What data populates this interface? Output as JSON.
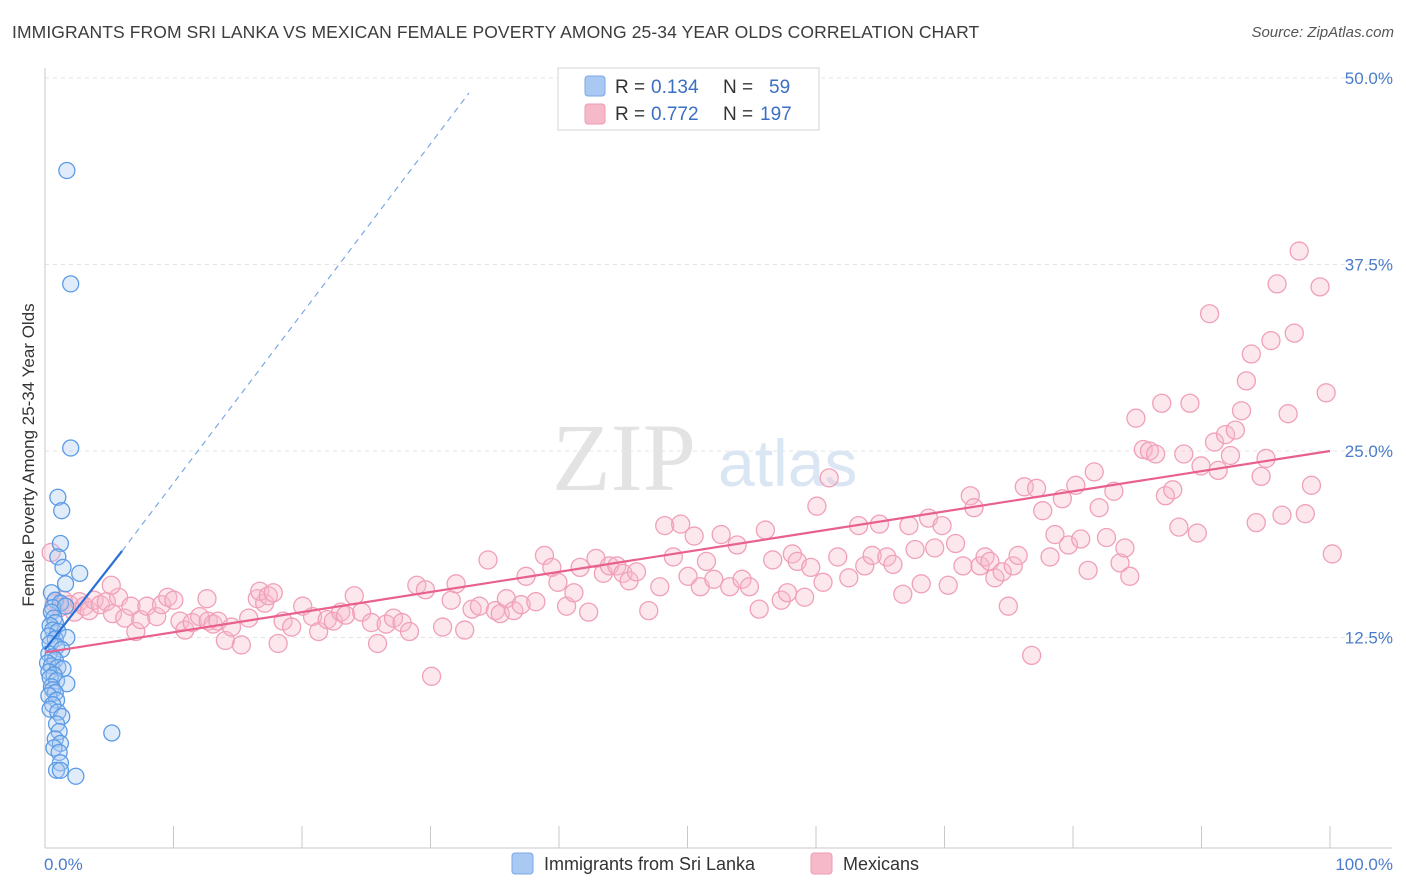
{
  "header": {
    "title": "IMMIGRANTS FROM SRI LANKA VS MEXICAN FEMALE POVERTY AMONG 25-34 YEAR OLDS CORRELATION CHART",
    "source": "Source: ZipAtlas.com"
  },
  "watermark": {
    "zip": "ZIP",
    "atlas": "atlas"
  },
  "legend_box": {
    "rows": [
      {
        "r_label": "R =",
        "r_value": "0.134",
        "n_label": "N =",
        "n_value": "59",
        "color": "#a9c8f2"
      },
      {
        "r_label": "R =",
        "r_value": "0.772",
        "n_label": "N =",
        "n_value": "197",
        "color": "#f6b9ca"
      }
    ]
  },
  "bottom_legend": [
    {
      "label": "Immigrants from Sri Lanka",
      "color": "#a9c8f2"
    },
    {
      "label": "Mexicans",
      "color": "#f6b9ca"
    }
  ],
  "colors": {
    "blue_stroke": "#5b9be6",
    "blue_line": "#2a6fd6",
    "pink_stroke": "#f0a0b8",
    "pink_line": "#e8608e",
    "grid": "#e4e4e4",
    "tick_label": "#4a7cc9"
  },
  "chart_data": {
    "type": "scatter",
    "title": "IMMIGRANTS FROM SRI LANKA VS MEXICAN FEMALE POVERTY AMONG 25-34 YEAR OLDS CORRELATION CHART",
    "xlabel": "",
    "ylabel": "Female Poverty Among 25-34 Year Olds",
    "xlim": [
      0,
      100
    ],
    "ylim": [
      0,
      50
    ],
    "x_tick_labels": [
      "0.0%",
      "100.0%"
    ],
    "y_ticks": [
      12.5,
      25.0,
      37.5,
      50.0
    ],
    "y_tick_labels": [
      "12.5%",
      "25.0%",
      "37.5%",
      "50.0%"
    ],
    "grid": true,
    "legend_position": "top-center",
    "series": [
      {
        "name": "Immigrants from Sri Lanka",
        "R": 0.134,
        "N": 59,
        "trend": {
          "x": [
            0,
            6
          ],
          "y": [
            11.7,
            18.3
          ],
          "extended_to": [
            33,
            49
          ]
        },
        "points": [
          [
            1.7,
            43.8
          ],
          [
            2.0,
            36.2
          ],
          [
            2.0,
            25.2
          ],
          [
            1.0,
            21.9
          ],
          [
            1.3,
            21.0
          ],
          [
            1.2,
            18.8
          ],
          [
            1.0,
            17.9
          ],
          [
            1.4,
            17.2
          ],
          [
            2.7,
            16.8
          ],
          [
            1.6,
            16.1
          ],
          [
            0.5,
            15.5
          ],
          [
            0.8,
            15.0
          ],
          [
            1.2,
            14.8
          ],
          [
            0.6,
            14.5
          ],
          [
            1.6,
            14.6
          ],
          [
            0.5,
            14.2
          ],
          [
            0.7,
            13.8
          ],
          [
            0.8,
            13.5
          ],
          [
            0.4,
            13.3
          ],
          [
            0.6,
            13.0
          ],
          [
            1.0,
            12.9
          ],
          [
            0.3,
            12.6
          ],
          [
            0.8,
            12.4
          ],
          [
            1.7,
            12.5
          ],
          [
            0.4,
            12.1
          ],
          [
            0.9,
            11.9
          ],
          [
            1.3,
            11.7
          ],
          [
            0.3,
            11.4
          ],
          [
            0.6,
            11.2
          ],
          [
            0.8,
            11.0
          ],
          [
            0.2,
            10.8
          ],
          [
            0.5,
            10.6
          ],
          [
            1.0,
            10.5
          ],
          [
            1.4,
            10.4
          ],
          [
            0.3,
            10.2
          ],
          [
            0.7,
            10.0
          ],
          [
            0.4,
            9.8
          ],
          [
            0.9,
            9.6
          ],
          [
            1.7,
            9.4
          ],
          [
            0.5,
            9.2
          ],
          [
            0.6,
            9.0
          ],
          [
            0.8,
            8.8
          ],
          [
            0.3,
            8.6
          ],
          [
            0.9,
            8.3
          ],
          [
            0.6,
            8.0
          ],
          [
            0.4,
            7.7
          ],
          [
            1.0,
            7.5
          ],
          [
            1.3,
            7.2
          ],
          [
            0.9,
            6.7
          ],
          [
            1.1,
            6.2
          ],
          [
            5.2,
            6.1
          ],
          [
            0.8,
            5.7
          ],
          [
            1.2,
            5.4
          ],
          [
            0.7,
            5.1
          ],
          [
            1.1,
            4.8
          ],
          [
            1.2,
            4.1
          ],
          [
            0.9,
            3.6
          ],
          [
            1.2,
            3.6
          ],
          [
            2.4,
            3.2
          ]
        ]
      },
      {
        "name": "Mexicans",
        "R": 0.772,
        "N": 197,
        "trend": {
          "x": [
            0,
            100
          ],
          "y": [
            11.5,
            25.0
          ]
        },
        "points": [
          [
            0.5,
            18.2
          ],
          [
            0.8,
            14.8
          ],
          [
            1.2,
            14.5
          ],
          [
            1.5,
            15.0
          ],
          [
            2.0,
            14.7
          ],
          [
            2.4,
            14.2
          ],
          [
            2.8,
            14.9
          ],
          [
            3.2,
            14.6
          ],
          [
            3.6,
            14.3
          ],
          [
            4.0,
            15.0
          ],
          [
            4.5,
            14.7
          ],
          [
            5.0,
            14.9
          ],
          [
            5.5,
            14.1
          ],
          [
            6.0,
            15.2
          ],
          [
            5.4,
            16.0
          ],
          [
            6.5,
            13.8
          ],
          [
            7.0,
            14.6
          ],
          [
            7.4,
            12.9
          ],
          [
            7.8,
            13.7
          ],
          [
            8.3,
            14.6
          ],
          [
            9.1,
            13.9
          ],
          [
            9.5,
            14.7
          ],
          [
            10.0,
            15.2
          ],
          [
            10.5,
            15.0
          ],
          [
            11.0,
            13.6
          ],
          [
            11.4,
            13.0
          ],
          [
            12.0,
            13.5
          ],
          [
            12.6,
            13.9
          ],
          [
            13.3,
            13.6
          ],
          [
            13.7,
            13.4
          ],
          [
            14.1,
            13.6
          ],
          [
            13.2,
            15.1
          ],
          [
            14.7,
            12.3
          ],
          [
            15.2,
            13.2
          ],
          [
            16.0,
            12.0
          ],
          [
            16.6,
            13.8
          ],
          [
            17.3,
            15.1
          ],
          [
            17.9,
            14.8
          ],
          [
            17.5,
            15.6
          ],
          [
            18.2,
            15.3
          ],
          [
            18.6,
            15.5
          ],
          [
            19.4,
            13.6
          ],
          [
            19.0,
            12.1
          ],
          [
            20.1,
            13.2
          ],
          [
            21.0,
            14.6
          ],
          [
            21.8,
            13.9
          ],
          [
            22.3,
            12.9
          ],
          [
            23.0,
            13.7
          ],
          [
            23.5,
            13.6
          ],
          [
            24.1,
            14.2
          ],
          [
            24.5,
            14.0
          ],
          [
            25.2,
            15.3
          ],
          [
            25.8,
            14.2
          ],
          [
            26.6,
            13.5
          ],
          [
            27.1,
            12.1
          ],
          [
            27.8,
            13.4
          ],
          [
            28.4,
            13.8
          ],
          [
            29.1,
            13.5
          ],
          [
            29.7,
            12.9
          ],
          [
            30.3,
            16.0
          ],
          [
            31.0,
            15.7
          ],
          [
            31.5,
            9.9
          ],
          [
            32.4,
            13.2
          ],
          [
            33.1,
            15.0
          ],
          [
            33.5,
            16.1
          ],
          [
            34.2,
            13.0
          ],
          [
            34.8,
            14.4
          ],
          [
            35.4,
            14.6
          ],
          [
            36.1,
            17.7
          ],
          [
            36.7,
            14.3
          ],
          [
            37.1,
            14.1
          ],
          [
            37.6,
            15.1
          ],
          [
            38.2,
            14.3
          ],
          [
            38.8,
            14.7
          ],
          [
            39.2,
            16.6
          ],
          [
            40.0,
            14.9
          ],
          [
            40.7,
            18.0
          ],
          [
            41.3,
            17.2
          ],
          [
            41.8,
            16.2
          ],
          [
            42.5,
            14.6
          ],
          [
            43.1,
            15.5
          ],
          [
            43.6,
            17.2
          ],
          [
            44.3,
            14.2
          ],
          [
            44.9,
            17.8
          ],
          [
            45.5,
            16.8
          ],
          [
            46.0,
            17.3
          ],
          [
            46.6,
            17.3
          ],
          [
            47.1,
            16.8
          ],
          [
            47.6,
            16.3
          ],
          [
            48.2,
            16.9
          ],
          [
            49.2,
            14.3
          ],
          [
            50.1,
            15.9
          ],
          [
            50.5,
            20.0
          ],
          [
            51.2,
            17.9
          ],
          [
            51.8,
            20.1
          ],
          [
            52.4,
            16.6
          ],
          [
            52.9,
            19.3
          ],
          [
            53.4,
            15.9
          ],
          [
            53.9,
            17.6
          ],
          [
            54.5,
            16.4
          ],
          [
            55.1,
            19.4
          ],
          [
            55.8,
            15.9
          ],
          [
            56.4,
            18.7
          ],
          [
            56.8,
            16.4
          ],
          [
            57.4,
            15.9
          ],
          [
            58.2,
            14.4
          ],
          [
            58.7,
            19.7
          ],
          [
            59.3,
            17.7
          ],
          [
            60.0,
            15.0
          ],
          [
            60.5,
            15.5
          ],
          [
            60.9,
            18.1
          ],
          [
            61.3,
            17.6
          ],
          [
            61.9,
            15.2
          ],
          [
            62.4,
            17.2
          ],
          [
            62.9,
            21.3
          ],
          [
            63.4,
            16.2
          ],
          [
            63.9,
            23.2
          ],
          [
            64.6,
            17.9
          ],
          [
            65.5,
            16.5
          ],
          [
            66.3,
            20.0
          ],
          [
            66.8,
            17.3
          ],
          [
            67.4,
            18.0
          ],
          [
            68.0,
            20.1
          ],
          [
            68.6,
            17.9
          ],
          [
            69.1,
            17.4
          ],
          [
            69.9,
            15.4
          ],
          [
            70.4,
            20.0
          ],
          [
            70.9,
            18.4
          ],
          [
            71.4,
            16.1
          ],
          [
            72.0,
            20.5
          ],
          [
            72.5,
            18.5
          ],
          [
            73.1,
            20.0
          ],
          [
            73.6,
            16.0
          ],
          [
            74.2,
            18.8
          ],
          [
            74.8,
            17.3
          ],
          [
            75.4,
            22.0
          ],
          [
            75.7,
            21.2
          ],
          [
            76.2,
            17.3
          ],
          [
            76.6,
            17.9
          ],
          [
            77.0,
            17.6
          ],
          [
            77.4,
            16.5
          ],
          [
            78.0,
            16.9
          ],
          [
            78.5,
            14.6
          ],
          [
            78.9,
            17.3
          ],
          [
            79.3,
            18.0
          ],
          [
            79.8,
            22.6
          ],
          [
            80.4,
            11.3
          ],
          [
            80.8,
            22.5
          ],
          [
            81.3,
            21.0
          ],
          [
            81.9,
            17.9
          ],
          [
            82.3,
            19.4
          ],
          [
            82.9,
            21.8
          ],
          [
            83.4,
            18.7
          ],
          [
            84.0,
            22.7
          ],
          [
            84.4,
            19.1
          ],
          [
            85.0,
            17.0
          ],
          [
            85.5,
            23.6
          ],
          [
            85.9,
            21.2
          ],
          [
            86.5,
            19.2
          ],
          [
            87.1,
            22.3
          ],
          [
            87.6,
            17.5
          ],
          [
            88.0,
            18.5
          ],
          [
            88.4,
            16.6
          ],
          [
            88.9,
            27.2
          ],
          [
            89.5,
            25.1
          ],
          [
            90.0,
            25.0
          ],
          [
            90.5,
            24.8
          ],
          [
            91.0,
            28.2
          ],
          [
            91.3,
            22.0
          ],
          [
            91.9,
            22.4
          ],
          [
            92.4,
            19.9
          ],
          [
            92.8,
            24.8
          ],
          [
            93.3,
            28.2
          ],
          [
            93.9,
            19.5
          ],
          [
            94.2,
            24.0
          ],
          [
            94.9,
            34.2
          ],
          [
            95.3,
            25.6
          ],
          [
            95.6,
            23.7
          ],
          [
            96.2,
            26.1
          ],
          [
            96.6,
            24.7
          ],
          [
            97.0,
            26.4
          ],
          [
            97.5,
            27.7
          ],
          [
            97.9,
            29.7
          ],
          [
            98.3,
            31.5
          ],
          [
            98.7,
            20.2
          ],
          [
            99.1,
            23.3
          ],
          [
            99.5,
            24.5
          ],
          [
            99.9,
            32.4
          ],
          [
            100.4,
            36.2
          ],
          [
            100.8,
            20.7
          ],
          [
            101.3,
            27.5
          ],
          [
            101.8,
            32.9
          ],
          [
            102.2,
            38.4
          ],
          [
            102.7,
            20.8
          ],
          [
            103.2,
            22.7
          ],
          [
            103.9,
            36.0
          ],
          [
            104.4,
            28.9
          ],
          [
            104.9,
            18.1
          ]
        ]
      }
    ]
  }
}
